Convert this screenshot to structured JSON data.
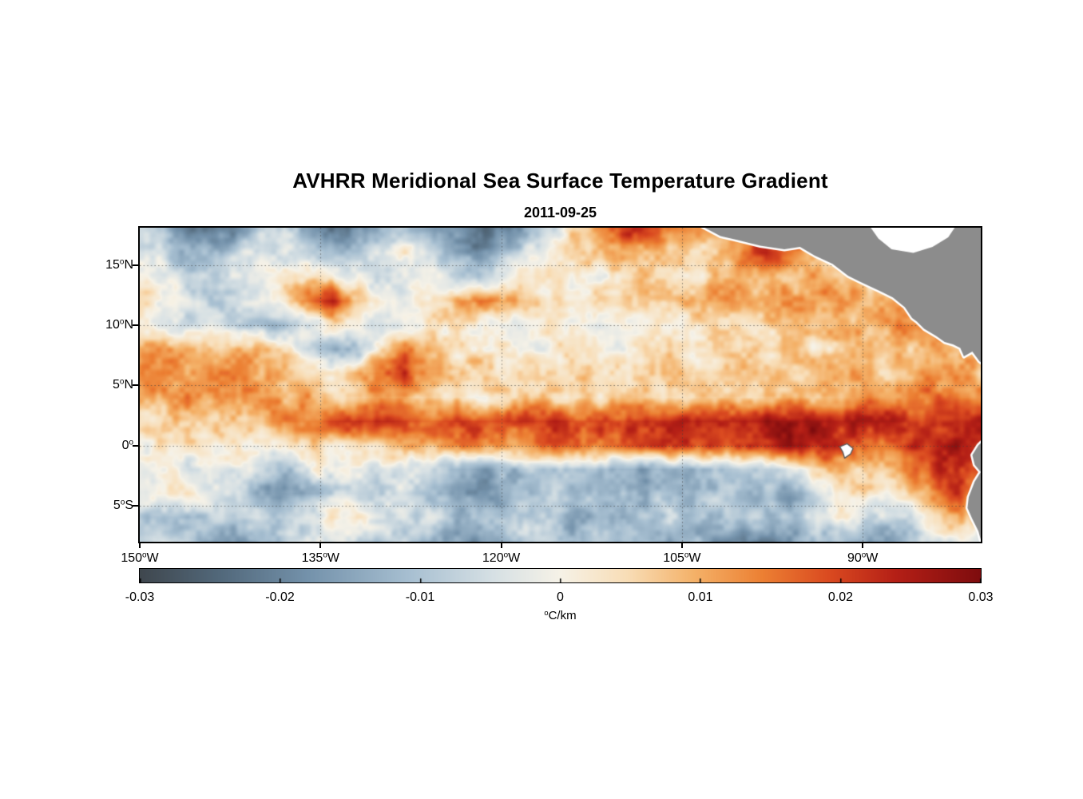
{
  "chart_data": {
    "type": "heatmap",
    "title": "AVHRR Meridional Sea Surface Temperature Gradient",
    "subtitle": "2011-09-25",
    "lon_range": [
      -150,
      -80.2
    ],
    "lat_range": [
      -8,
      18.1
    ],
    "background_color": "#ffffff",
    "land_color": "#8c8c8c",
    "grid": {
      "lat_lines": [
        15,
        10,
        5,
        0,
        -5
      ],
      "lon_lines": [
        -135,
        -120,
        -105,
        -90
      ],
      "style": "dotted"
    },
    "xticks": [
      {
        "num": "150",
        "sup": "o",
        "hemi": "W",
        "lon": -150
      },
      {
        "num": "135",
        "sup": "o",
        "hemi": "W",
        "lon": -135
      },
      {
        "num": "120",
        "sup": "o",
        "hemi": "W",
        "lon": -120
      },
      {
        "num": "105",
        "sup": "o",
        "hemi": "W",
        "lon": -105
      },
      {
        "num": "90",
        "sup": "o",
        "hemi": "W",
        "lon": -90
      }
    ],
    "yticks": [
      {
        "num": "15",
        "sup": "o",
        "hemi": "N",
        "lat": 15
      },
      {
        "num": "10",
        "sup": "o",
        "hemi": "N",
        "lat": 10
      },
      {
        "num": "5",
        "sup": "o",
        "hemi": "N",
        "lat": 5
      },
      {
        "num": "0",
        "sup": "o",
        "hemi": "",
        "lat": 0
      },
      {
        "num": "5",
        "sup": "o",
        "hemi": "S",
        "lat": -5
      }
    ],
    "colorbar": {
      "min": -0.03,
      "max": 0.03,
      "tick_values": [
        -0.03,
        -0.02,
        -0.01,
        0,
        0.01,
        0.02,
        0.03
      ],
      "tick_labels": [
        "-0.03",
        "-0.02",
        "-0.01",
        "0",
        "0.01",
        "0.02",
        "0.03"
      ],
      "unit_sup": "o",
      "unit_text": "C/km",
      "stops": [
        {
          "p": 0.0,
          "c": "#3f474e"
        },
        {
          "p": 0.1,
          "c": "#536a7d"
        },
        {
          "p": 0.2,
          "c": "#7492ab"
        },
        {
          "p": 0.32,
          "c": "#a7bfd1"
        },
        {
          "p": 0.42,
          "c": "#d6e0e4"
        },
        {
          "p": 0.5,
          "c": "#f6f2e7"
        },
        {
          "p": 0.58,
          "c": "#f8ddb6"
        },
        {
          "p": 0.66,
          "c": "#f4b168"
        },
        {
          "p": 0.74,
          "c": "#ec8033"
        },
        {
          "p": 0.82,
          "c": "#da4a20"
        },
        {
          "p": 0.9,
          "c": "#b41f16"
        },
        {
          "p": 1.0,
          "c": "#7e0c0e"
        }
      ]
    },
    "lons": [
      -150,
      -148,
      -146,
      -144,
      -142,
      -140,
      -138,
      -136,
      -134,
      -132,
      -130,
      -128,
      -126,
      -124,
      -122,
      -120,
      -118,
      -116,
      -114,
      -112,
      -110,
      -108,
      -106,
      -104,
      -102,
      -100,
      -98,
      -96,
      -94,
      -92,
      -90,
      -88,
      -86,
      -84,
      -82,
      -80
    ],
    "lats": [
      18,
      16,
      14,
      12,
      10,
      8,
      6,
      4,
      2,
      0,
      -2,
      -4,
      -6,
      -8
    ],
    "values": [
      [
        -0.004,
        -0.012,
        -0.022,
        -0.025,
        -0.018,
        -0.01,
        -0.006,
        -0.015,
        -0.022,
        -0.02,
        -0.012,
        -0.008,
        -0.01,
        -0.018,
        -0.026,
        -0.022,
        -0.015,
        -0.006,
        0.004,
        0.012,
        0.02,
        0.022,
        0.015,
        0.008,
        0.01,
        0.012,
        0.015,
        0.018,
        0.01,
        0.006,
        0.004,
        0.008,
        0.012,
        0.018,
        0.01,
        0.005
      ],
      [
        -0.002,
        -0.008,
        -0.014,
        -0.012,
        -0.006,
        -0.002,
        -0.004,
        -0.01,
        -0.012,
        -0.008,
        -0.002,
        0.002,
        -0.004,
        -0.012,
        -0.018,
        -0.012,
        -0.005,
        0.002,
        0.006,
        0.01,
        0.012,
        0.01,
        0.006,
        0.004,
        0.008,
        0.014,
        0.022,
        0.016,
        0.008,
        0.004,
        0.002,
        0.004,
        0.006,
        0.008,
        0.006,
        0.004
      ],
      [
        0.002,
        -0.002,
        -0.006,
        -0.008,
        -0.004,
        0.0,
        0.002,
        0.006,
        0.004,
        -0.002,
        -0.006,
        -0.004,
        0.0,
        -0.004,
        -0.008,
        -0.004,
        0.002,
        0.004,
        0.002,
        0.0,
        0.004,
        0.008,
        0.004,
        0.002,
        0.006,
        0.01,
        0.012,
        0.008,
        0.012,
        0.01,
        0.006,
        0.004,
        0.006,
        0.01,
        0.008,
        0.006
      ],
      [
        0.004,
        0.0,
        -0.004,
        -0.008,
        -0.006,
        -0.002,
        0.004,
        0.014,
        0.022,
        0.01,
        0.002,
        -0.002,
        0.004,
        0.008,
        0.015,
        0.012,
        0.006,
        0.002,
        0.004,
        0.006,
        0.004,
        0.006,
        0.008,
        0.01,
        0.012,
        0.01,
        0.008,
        0.01,
        0.012,
        0.014,
        0.01,
        0.008,
        0.01,
        0.012,
        0.01,
        0.008
      ],
      [
        0.002,
        -0.002,
        -0.006,
        -0.004,
        -0.008,
        -0.012,
        -0.014,
        -0.006,
        0.002,
        0.0,
        -0.004,
        -0.002,
        0.002,
        0.004,
        0.002,
        -0.002,
        0.0,
        0.004,
        0.002,
        -0.002,
        0.002,
        0.004,
        0.002,
        0.004,
        0.006,
        0.004,
        0.006,
        0.008,
        0.006,
        0.008,
        0.01,
        0.012,
        0.014,
        0.01,
        0.012,
        0.01
      ],
      [
        0.008,
        0.012,
        0.01,
        0.008,
        0.012,
        0.01,
        0.006,
        -0.004,
        -0.012,
        -0.01,
        0.006,
        0.018,
        0.008,
        0.002,
        0.004,
        0.002,
        0.0,
        0.002,
        0.004,
        0.002,
        0.0,
        0.002,
        0.004,
        0.002,
        0.004,
        0.006,
        0.004,
        0.006,
        0.004,
        0.006,
        0.008,
        0.006,
        0.008,
        0.01,
        0.008,
        0.012
      ],
      [
        0.012,
        0.014,
        0.01,
        0.012,
        0.014,
        0.012,
        0.008,
        0.004,
        0.002,
        0.008,
        0.016,
        0.02,
        0.012,
        0.006,
        0.008,
        0.006,
        0.004,
        0.006,
        0.004,
        0.006,
        0.004,
        0.006,
        0.008,
        0.006,
        0.008,
        0.01,
        0.008,
        0.006,
        0.008,
        0.01,
        0.008,
        0.006,
        0.008,
        0.012,
        0.01,
        0.008
      ],
      [
        0.01,
        0.012,
        0.014,
        0.01,
        0.012,
        0.014,
        0.01,
        0.012,
        0.008,
        0.006,
        0.01,
        0.008,
        0.006,
        0.004,
        -0.002,
        0.004,
        0.008,
        0.006,
        0.004,
        0.006,
        0.008,
        0.006,
        0.004,
        0.006,
        0.008,
        0.006,
        0.008,
        0.01,
        0.008,
        0.01,
        0.012,
        0.01,
        0.012,
        0.018,
        0.014,
        0.01
      ],
      [
        0.004,
        0.006,
        0.008,
        0.006,
        0.008,
        0.01,
        0.012,
        0.016,
        0.02,
        0.022,
        0.024,
        0.022,
        0.018,
        0.02,
        0.022,
        0.018,
        0.022,
        0.024,
        0.022,
        0.02,
        0.022,
        0.024,
        0.022,
        0.024,
        0.026,
        0.024,
        0.026,
        0.028,
        0.026,
        0.024,
        0.022,
        0.024,
        0.02,
        0.022,
        0.024,
        0.022
      ],
      [
        0.0,
        0.002,
        0.004,
        0.002,
        0.004,
        0.002,
        0.004,
        0.006,
        0.004,
        0.006,
        0.008,
        0.012,
        0.01,
        0.014,
        0.016,
        0.012,
        0.014,
        0.016,
        0.018,
        0.016,
        0.018,
        0.02,
        0.022,
        0.02,
        0.022,
        0.02,
        0.024,
        0.028,
        0.026,
        0.022,
        0.018,
        0.016,
        0.02,
        0.024,
        0.026,
        0.022
      ],
      [
        -0.002,
        0.002,
        -0.004,
        -0.006,
        -0.002,
        -0.008,
        -0.01,
        -0.004,
        0.002,
        -0.002,
        -0.006,
        -0.004,
        -0.008,
        -0.012,
        -0.016,
        -0.014,
        -0.01,
        -0.012,
        -0.008,
        -0.01,
        -0.014,
        -0.016,
        -0.012,
        -0.014,
        -0.01,
        -0.006,
        -0.008,
        -0.004,
        0.004,
        0.008,
        0.006,
        0.01,
        0.014,
        0.02,
        0.024,
        0.018
      ],
      [
        -0.004,
        0.004,
        0.002,
        -0.004,
        -0.008,
        -0.012,
        -0.018,
        -0.014,
        -0.006,
        -0.004,
        -0.008,
        -0.006,
        -0.01,
        -0.014,
        -0.018,
        -0.016,
        -0.012,
        -0.008,
        -0.012,
        -0.01,
        -0.008,
        -0.012,
        -0.01,
        -0.014,
        -0.008,
        -0.01,
        -0.012,
        -0.016,
        -0.008,
        -0.002,
        0.004,
        0.002,
        0.006,
        0.012,
        0.02,
        0.014
      ],
      [
        -0.006,
        -0.01,
        -0.012,
        -0.008,
        -0.01,
        -0.006,
        -0.008,
        -0.004,
        0.002,
        0.004,
        -0.002,
        -0.006,
        -0.004,
        -0.01,
        -0.014,
        -0.01,
        -0.006,
        -0.01,
        -0.014,
        -0.012,
        -0.016,
        -0.012,
        -0.008,
        -0.01,
        -0.012,
        -0.008,
        -0.01,
        -0.012,
        -0.006,
        0.002,
        -0.004,
        -0.008,
        -0.004,
        0.004,
        0.008,
        0.006
      ],
      [
        -0.008,
        -0.006,
        -0.01,
        -0.016,
        -0.018,
        -0.012,
        -0.008,
        -0.006,
        -0.002,
        -0.006,
        -0.01,
        -0.008,
        -0.012,
        -0.016,
        -0.018,
        -0.014,
        -0.01,
        -0.008,
        -0.012,
        -0.008,
        -0.012,
        -0.01,
        -0.014,
        -0.012,
        -0.016,
        -0.02,
        -0.022,
        -0.018,
        -0.012,
        -0.008,
        -0.012,
        -0.014,
        -0.01,
        -0.006,
        -0.002,
        -0.004
      ]
    ],
    "land": {
      "central_america": [
        [
          -103.3,
          18.2
        ],
        [
          -101.8,
          17.4
        ],
        [
          -100.5,
          17.1
        ],
        [
          -98.5,
          16.6
        ],
        [
          -96.5,
          16.3
        ],
        [
          -95.2,
          16.5
        ],
        [
          -94.0,
          15.8
        ],
        [
          -92.5,
          15.1
        ],
        [
          -91.2,
          14.1
        ],
        [
          -90.2,
          13.6
        ],
        [
          -88.5,
          12.8
        ],
        [
          -87.5,
          12.3
        ],
        [
          -86.5,
          11.5
        ],
        [
          -85.9,
          10.6
        ],
        [
          -85.5,
          10.3
        ],
        [
          -84.9,
          9.7
        ],
        [
          -83.9,
          9.1
        ],
        [
          -83.2,
          8.6
        ],
        [
          -82.5,
          8.4
        ],
        [
          -81.9,
          8.1
        ],
        [
          -81.6,
          7.4
        ],
        [
          -80.9,
          7.8
        ],
        [
          -80.3,
          7.0
        ],
        [
          -79.8,
          6.6
        ],
        [
          -79.8,
          18.2
        ]
      ],
      "caribbean_gap": [
        [
          -89.4,
          18.2
        ],
        [
          -82.3,
          18.2
        ],
        [
          -82.9,
          17.3
        ],
        [
          -84.2,
          16.5
        ],
        [
          -85.8,
          16.0
        ],
        [
          -87.6,
          16.3
        ],
        [
          -88.7,
          17.2
        ]
      ],
      "south_america": [
        [
          -79.8,
          0.6
        ],
        [
          -80.4,
          0.0
        ],
        [
          -80.9,
          -0.8
        ],
        [
          -80.7,
          -1.6
        ],
        [
          -80.2,
          -2.2
        ],
        [
          -80.7,
          -3.0
        ],
        [
          -81.2,
          -4.3
        ],
        [
          -81.3,
          -5.2
        ],
        [
          -80.9,
          -6.1
        ],
        [
          -80.4,
          -7.1
        ],
        [
          -80.1,
          -8.2
        ],
        [
          -79.8,
          -8.2
        ]
      ],
      "galapagos": [
        [
          -91.9,
          -0.1
        ],
        [
          -91.3,
          0.15
        ],
        [
          -90.8,
          -0.25
        ],
        [
          -91.0,
          -0.7
        ],
        [
          -91.5,
          -1.05
        ],
        [
          -91.65,
          -0.55
        ]
      ]
    }
  }
}
